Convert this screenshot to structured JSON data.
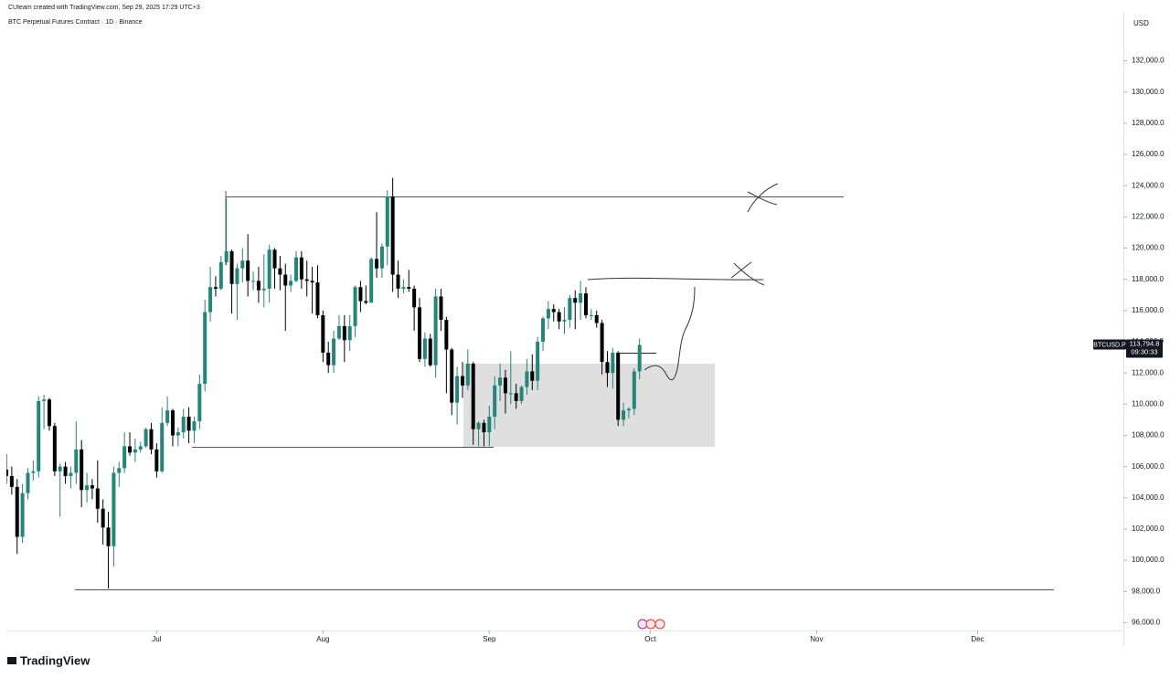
{
  "header": {
    "credit": "CUteam created with TradingView.com, Sep 29, 2025 17:29 UTC+3"
  },
  "footer": {
    "logo": "TradingView"
  },
  "chart_data": {
    "type": "candlestick",
    "title": "BTC Perpetual Futures Contract · 1D · Binance",
    "currency": "USD",
    "symbol": "BTCUSD.P",
    "countdown": "09:30:33",
    "last_price": {
      "value": 113794.8,
      "label": "113,794.8"
    },
    "up_color": "#22867a",
    "down_color": "#000000",
    "ylim": [
      95500,
      134900
    ],
    "yticks": [
      {
        "value": 96000,
        "label": "96,000.0"
      },
      {
        "value": 98000,
        "label": "98,000.0"
      },
      {
        "value": 100000,
        "label": "100,000.0"
      },
      {
        "value": 102000,
        "label": "102,000.0"
      },
      {
        "value": 104000,
        "label": "104,000.0"
      },
      {
        "value": 106000,
        "label": "106,000.0"
      },
      {
        "value": 108000,
        "label": "108,000.0"
      },
      {
        "value": 110000,
        "label": "110,000.0"
      },
      {
        "value": 112000,
        "label": "112,000.0"
      },
      {
        "value": 114000,
        "label": "114,000.0"
      },
      {
        "value": 116000,
        "label": "116,000.0"
      },
      {
        "value": 118000,
        "label": "118,000.0"
      },
      {
        "value": 120000,
        "label": "120,000.0"
      },
      {
        "value": 122000,
        "label": "122,000.0"
      },
      {
        "value": 124000,
        "label": "124,000.0"
      },
      {
        "value": 126000,
        "label": "126,000.0"
      },
      {
        "value": 128000,
        "label": "128,000.0"
      },
      {
        "value": 130000,
        "label": "130,000.0"
      },
      {
        "value": 132000,
        "label": "132,000.0"
      }
    ],
    "xlim": [
      0,
      208
    ],
    "xticks": [
      {
        "value": 28,
        "label": "Jul"
      },
      {
        "value": 59,
        "label": "Aug"
      },
      {
        "value": 90,
        "label": "Sep"
      },
      {
        "value": 120,
        "label": "Oct"
      },
      {
        "value": 151,
        "label": "Nov"
      },
      {
        "value": 181,
        "label": "Dec"
      }
    ],
    "ohlc": [
      [
        105800,
        106800,
        104900,
        105400
      ],
      [
        105400,
        106000,
        104200,
        104700
      ],
      [
        104700,
        105200,
        100400,
        101500
      ],
      [
        101500,
        104900,
        101100,
        104300
      ],
      [
        104300,
        105900,
        103900,
        105600
      ],
      [
        105600,
        106400,
        105100,
        105700
      ],
      [
        105700,
        110500,
        105300,
        110200
      ],
      [
        110200,
        110600,
        108400,
        110300
      ],
      [
        110300,
        110400,
        108300,
        108600
      ],
      [
        108600,
        108800,
        105400,
        105700
      ],
      [
        105700,
        106200,
        102800,
        106000
      ],
      [
        106000,
        106300,
        104900,
        105400
      ],
      [
        105400,
        106000,
        104600,
        105600
      ],
      [
        105600,
        108900,
        104900,
        107100
      ],
      [
        107100,
        107700,
        103400,
        104500
      ],
      [
        104500,
        105600,
        103700,
        104800
      ],
      [
        104800,
        105200,
        103900,
        104600
      ],
      [
        104600,
        106400,
        102400,
        103300
      ],
      [
        103300,
        103900,
        101000,
        102100
      ],
      [
        102100,
        103100,
        98200,
        100900
      ],
      [
        100900,
        106000,
        99600,
        105600
      ],
      [
        105600,
        106300,
        104700,
        105900
      ],
      [
        105900,
        108200,
        105600,
        107300
      ],
      [
        107300,
        108200,
        106700,
        106900
      ],
      [
        106900,
        107800,
        106300,
        107100
      ],
      [
        107100,
        107600,
        106900,
        107300
      ],
      [
        107300,
        108500,
        107200,
        108400
      ],
      [
        108400,
        108800,
        106800,
        107100
      ],
      [
        107100,
        107500,
        105300,
        105700
      ],
      [
        105700,
        109800,
        105600,
        108800
      ],
      [
        108800,
        110500,
        108600,
        109600
      ],
      [
        109600,
        109700,
        107300,
        108000
      ],
      [
        108000,
        108500,
        107300,
        108200
      ],
      [
        108200,
        109700,
        107800,
        109200
      ],
      [
        109200,
        109800,
        107500,
        108300
      ],
      [
        108300,
        109200,
        107500,
        108900
      ],
      [
        108900,
        111900,
        108400,
        111300
      ],
      [
        111300,
        116700,
        110800,
        115900
      ],
      [
        115900,
        118800,
        115300,
        117500
      ],
      [
        117500,
        118200,
        116900,
        117400
      ],
      [
        117400,
        119500,
        117300,
        119100
      ],
      [
        119100,
        123200,
        118900,
        119800
      ],
      [
        119800,
        119900,
        115800,
        117700
      ],
      [
        117700,
        119000,
        115400,
        118700
      ],
      [
        118700,
        120000,
        117800,
        119200
      ],
      [
        119200,
        120900,
        116900,
        117900
      ],
      [
        117900,
        118500,
        117300,
        117900
      ],
      [
        117900,
        118800,
        116500,
        117300
      ],
      [
        117300,
        119600,
        116200,
        117400
      ],
      [
        117400,
        120200,
        116500,
        119900
      ],
      [
        119900,
        120000,
        117400,
        118700
      ],
      [
        118700,
        119500,
        117300,
        118300
      ],
      [
        118300,
        119000,
        114700,
        117600
      ],
      [
        117600,
        118300,
        117200,
        117900
      ],
      [
        117900,
        119800,
        117800,
        119400
      ],
      [
        119400,
        119800,
        117400,
        118000
      ],
      [
        118000,
        119200,
        116900,
        117900
      ],
      [
        117900,
        118800,
        115800,
        117800
      ],
      [
        117800,
        118900,
        115500,
        115700
      ],
      [
        115700,
        116000,
        112700,
        113300
      ],
      [
        113300,
        114000,
        112000,
        112500
      ],
      [
        112500,
        114700,
        112000,
        114200
      ],
      [
        114200,
        115700,
        114100,
        115000
      ],
      [
        115000,
        115700,
        112700,
        114100
      ],
      [
        114100,
        115700,
        113400,
        115000
      ],
      [
        115000,
        117600,
        114300,
        117500
      ],
      [
        117500,
        117900,
        115900,
        116600
      ],
      [
        116600,
        117600,
        116400,
        116500
      ],
      [
        116500,
        119400,
        116500,
        119300
      ],
      [
        119300,
        122300,
        118100,
        118700
      ],
      [
        118700,
        120300,
        118100,
        120100
      ],
      [
        120100,
        123700,
        118900,
        123300
      ],
      [
        123300,
        124500,
        117200,
        118300
      ],
      [
        118300,
        119200,
        116800,
        117400
      ],
      [
        117400,
        118000,
        117100,
        117500
      ],
      [
        117500,
        118600,
        117200,
        117400
      ],
      [
        117400,
        117600,
        114700,
        116200
      ],
      [
        116200,
        116800,
        112700,
        112900
      ],
      [
        112900,
        114600,
        112400,
        114200
      ],
      [
        114200,
        114500,
        112400,
        112500
      ],
      [
        112500,
        117400,
        111700,
        116900
      ],
      [
        116900,
        117400,
        114700,
        115400
      ],
      [
        115400,
        115600,
        110700,
        113500
      ],
      [
        113500,
        113600,
        109300,
        110100
      ],
      [
        110100,
        112400,
        108700,
        111800
      ],
      [
        111800,
        112700,
        110400,
        111200
      ],
      [
        111200,
        113500,
        110900,
        112600
      ],
      [
        112600,
        112700,
        107400,
        108400
      ],
      [
        108400,
        108900,
        107300,
        108800
      ],
      [
        108800,
        109000,
        107300,
        108200
      ],
      [
        108200,
        109900,
        107300,
        109200
      ],
      [
        109200,
        111800,
        108400,
        111200
      ],
      [
        111200,
        112600,
        110200,
        111700
      ],
      [
        111700,
        112200,
        109400,
        110700
      ],
      [
        110700,
        113400,
        110000,
        110700
      ],
      [
        110700,
        111300,
        109700,
        110200
      ],
      [
        110200,
        111200,
        110000,
        111100
      ],
      [
        111100,
        112900,
        110600,
        112100
      ],
      [
        112100,
        113200,
        110900,
        111500
      ],
      [
        111500,
        114300,
        110900,
        114000
      ],
      [
        114000,
        115600,
        113400,
        115500
      ],
      [
        115500,
        116600,
        114800,
        116100
      ],
      [
        116100,
        116400,
        115300,
        115900
      ],
      [
        115900,
        116100,
        114800,
        115300
      ],
      [
        115300,
        116200,
        114500,
        115400
      ],
      [
        115400,
        117000,
        114900,
        116800
      ],
      [
        116800,
        117300,
        114800,
        116500
      ],
      [
        116500,
        117900,
        115400,
        117100
      ],
      [
        117100,
        117500,
        115500,
        115700
      ],
      [
        115700,
        116100,
        115400,
        115700
      ],
      [
        115700,
        116000,
        114900,
        115200
      ],
      [
        115200,
        115400,
        111900,
        112700
      ],
      [
        112700,
        113400,
        111100,
        112000
      ],
      [
        112000,
        113600,
        111000,
        113300
      ],
      [
        113300,
        113400,
        108600,
        109000
      ],
      [
        109000,
        110100,
        108600,
        109600
      ],
      [
        109600,
        109800,
        109100,
        109700
      ],
      [
        109700,
        112300,
        109300,
        112100
      ],
      [
        112100,
        114200,
        111600,
        113794.8
      ]
    ]
  }
}
